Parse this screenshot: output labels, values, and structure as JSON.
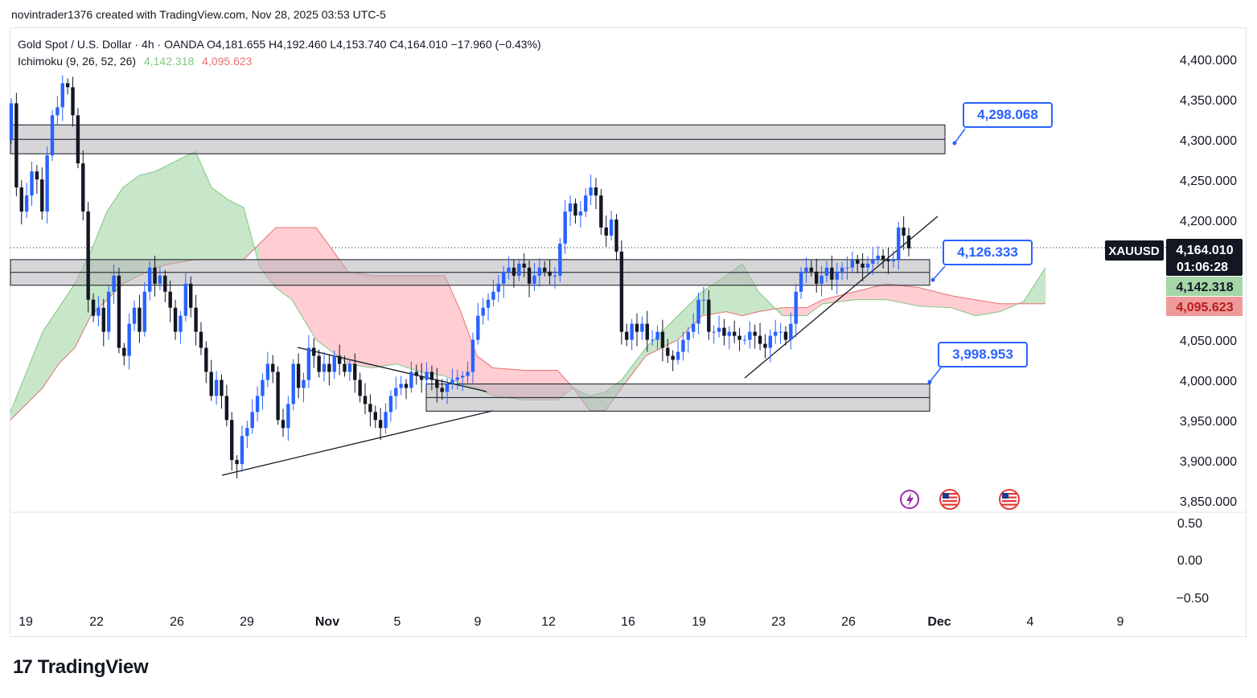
{
  "attribution": "novintrader1376 created with TradingView.com, Nov 28, 2025 03:53 UTC-5",
  "legend": {
    "symbol_line": "Gold Spot / U.S. Dollar · 4h · OANDA",
    "open": "O4,181.655",
    "high": "H4,192.460",
    "low": "L4,153.740",
    "close": "C4,164.010",
    "change": "−17.960 (−0.43%)",
    "indicator": "Ichimoku (9, 26, 52, 26)",
    "ind_val1": "4,142.318",
    "ind_val2": "4,095.623"
  },
  "price_axis": [
    "4,400.000",
    "4,350.000",
    "4,300.000",
    "4,250.000",
    "4,200.000",
    "4,050.000",
    "4,000.000",
    "3,950.000",
    "3,900.000",
    "3,850.000"
  ],
  "osc_axis": [
    "0.50",
    "0.00",
    "−0.50"
  ],
  "time_axis": [
    "19",
    "22",
    "26",
    "29",
    "Nov",
    "5",
    "9",
    "12",
    "16",
    "19",
    "23",
    "26",
    "Dec",
    "4",
    "9"
  ],
  "price_tags": {
    "symbol": "XAUUSD",
    "last": "4,164.010",
    "countdown": "01:06:28",
    "span_a": "4,142.318",
    "span_b": "4,095.623"
  },
  "callouts": [
    "4,298.068",
    "4,126.333",
    "3,998.953"
  ],
  "colors": {
    "up": "#2962ff",
    "down": "#131722",
    "cloud_bull": "#c8e6c9",
    "cloud_bear": "#ffcdd2",
    "callout": "#2962ff"
  },
  "brand": "TradingView",
  "chart_data": {
    "type": "candlestick",
    "title": "Gold Spot / U.S. Dollar · 4h · OANDA",
    "ylim": [
      3840,
      4420
    ],
    "zones": [
      {
        "low": 4282,
        "high": 4318
      },
      {
        "low": 4118,
        "high": 4150
      },
      {
        "low": 3961,
        "high": 3995
      }
    ],
    "cloud_a": [
      [
        0,
        3960
      ],
      [
        20,
        4010
      ],
      [
        40,
        4060
      ],
      [
        60,
        4090
      ],
      [
        80,
        4120
      ],
      [
        100,
        4160
      ],
      [
        120,
        4210
      ],
      [
        140,
        4240
      ],
      [
        160,
        4255
      ],
      [
        180,
        4260
      ],
      [
        200,
        4270
      ],
      [
        230,
        4285
      ],
      [
        250,
        4240
      ],
      [
        270,
        4225
      ],
      [
        290,
        4215
      ],
      [
        310,
        4140
      ],
      [
        330,
        4115
      ],
      [
        350,
        4100
      ],
      [
        380,
        4050
      ],
      [
        420,
        4020
      ],
      [
        450,
        4015
      ],
      [
        480,
        4020
      ],
      [
        510,
        4010
      ],
      [
        540,
        4005
      ],
      [
        560,
        3995
      ],
      [
        580,
        3990
      ],
      [
        600,
        3980
      ],
      [
        640,
        3975
      ],
      [
        680,
        3975
      ],
      [
        700,
        3990
      ],
      [
        720,
        3980
      ],
      [
        740,
        3985
      ],
      [
        760,
        4000
      ],
      [
        790,
        4040
      ],
      [
        830,
        4080
      ],
      [
        860,
        4110
      ],
      [
        890,
        4130
      ],
      [
        910,
        4145
      ],
      [
        930,
        4110
      ],
      [
        960,
        4080
      ],
      [
        990,
        4080
      ],
      [
        1010,
        4095
      ],
      [
        1050,
        4100
      ],
      [
        1090,
        4100
      ],
      [
        1130,
        4092
      ],
      [
        1170,
        4090
      ],
      [
        1200,
        4080
      ],
      [
        1230,
        4085
      ],
      [
        1260,
        4098
      ],
      [
        1287,
        4140
      ]
    ],
    "cloud_b": [
      [
        0,
        3950
      ],
      [
        20,
        3970
      ],
      [
        40,
        3990
      ],
      [
        60,
        4020
      ],
      [
        80,
        4040
      ],
      [
        100,
        4080
      ],
      [
        120,
        4100
      ],
      [
        140,
        4120
      ],
      [
        160,
        4130
      ],
      [
        180,
        4140
      ],
      [
        200,
        4145
      ],
      [
        230,
        4150
      ],
      [
        250,
        4150
      ],
      [
        270,
        4150
      ],
      [
        290,
        4150
      ],
      [
        310,
        4170
      ],
      [
        330,
        4190
      ],
      [
        350,
        4190
      ],
      [
        380,
        4190
      ],
      [
        420,
        4135
      ],
      [
        450,
        4130
      ],
      [
        480,
        4130
      ],
      [
        510,
        4130
      ],
      [
        540,
        4130
      ],
      [
        560,
        4085
      ],
      [
        580,
        4030
      ],
      [
        600,
        4015
      ],
      [
        640,
        4012
      ],
      [
        680,
        4012
      ],
      [
        700,
        3990
      ],
      [
        720,
        3962
      ],
      [
        740,
        3962
      ],
      [
        760,
        3990
      ],
      [
        790,
        4030
      ],
      [
        830,
        4050
      ],
      [
        860,
        4080
      ],
      [
        890,
        4085
      ],
      [
        910,
        4080
      ],
      [
        930,
        4085
      ],
      [
        960,
        4090
      ],
      [
        990,
        4090
      ],
      [
        1010,
        4100
      ],
      [
        1050,
        4110
      ],
      [
        1090,
        4120
      ],
      [
        1130,
        4115
      ],
      [
        1170,
        4105
      ],
      [
        1200,
        4100
      ],
      [
        1230,
        4095
      ],
      [
        1260,
        4095
      ],
      [
        1287,
        4095
      ]
    ],
    "closes": [
      4345,
      4240,
      4210,
      4230,
      4260,
      4250,
      4210,
      4280,
      4330,
      4340,
      4370,
      4365,
      4330,
      4270,
      4210,
      4100,
      4080,
      4090,
      4060,
      4110,
      4130,
      4040,
      4030,
      4070,
      4090,
      4060,
      4110,
      4140,
      4120,
      4130,
      4110,
      4090,
      4060,
      4080,
      4120,
      4090,
      4060,
      4040,
      4010,
      3980,
      4000,
      3980,
      3950,
      3900,
      3895,
      3930,
      3940,
      3960,
      3980,
      4000,
      4020,
      4010,
      3950,
      3940,
      3970,
      4020,
      3990,
      4000,
      4040,
      4030,
      4010,
      4020,
      4010,
      4030,
      4020,
      4010,
      4020,
      4000,
      3980,
      3970,
      3960,
      3950,
      3940,
      3960,
      3980,
      3990,
      3995,
      3990,
      4010,
      4005,
      4000,
      4010,
      4000,
      3990,
      3985,
      3995,
      4000,
      4003,
      4005,
      4010,
      4050,
      4080,
      4090,
      4100,
      4110,
      4120,
      4135,
      4140,
      4130,
      4145,
      4140,
      4120,
      4130,
      4140,
      4135,
      4130,
      4130,
      4170,
      4210,
      4220,
      4205,
      4210,
      4230,
      4240,
      4230,
      4190,
      4180,
      4200,
      4160,
      4060,
      4050,
      4070,
      4060,
      4070,
      4050,
      4050,
      4060,
      4040,
      4030,
      4025,
      4035,
      4050,
      4060,
      4070,
      4100,
      4100,
      4060,
      4060,
      4065,
      4055,
      4060,
      4055,
      4050,
      4050,
      4060,
      4055,
      4045,
      4040,
      4055,
      4060,
      4060,
      4050,
      4070,
      4110,
      4135,
      4140,
      4135,
      4120,
      4130,
      4140,
      4125,
      4135,
      4140,
      4140,
      4150,
      4145,
      4140,
      4145,
      4150,
      4155,
      4150,
      4148,
      4150,
      4190,
      4180,
      4164
    ]
  }
}
